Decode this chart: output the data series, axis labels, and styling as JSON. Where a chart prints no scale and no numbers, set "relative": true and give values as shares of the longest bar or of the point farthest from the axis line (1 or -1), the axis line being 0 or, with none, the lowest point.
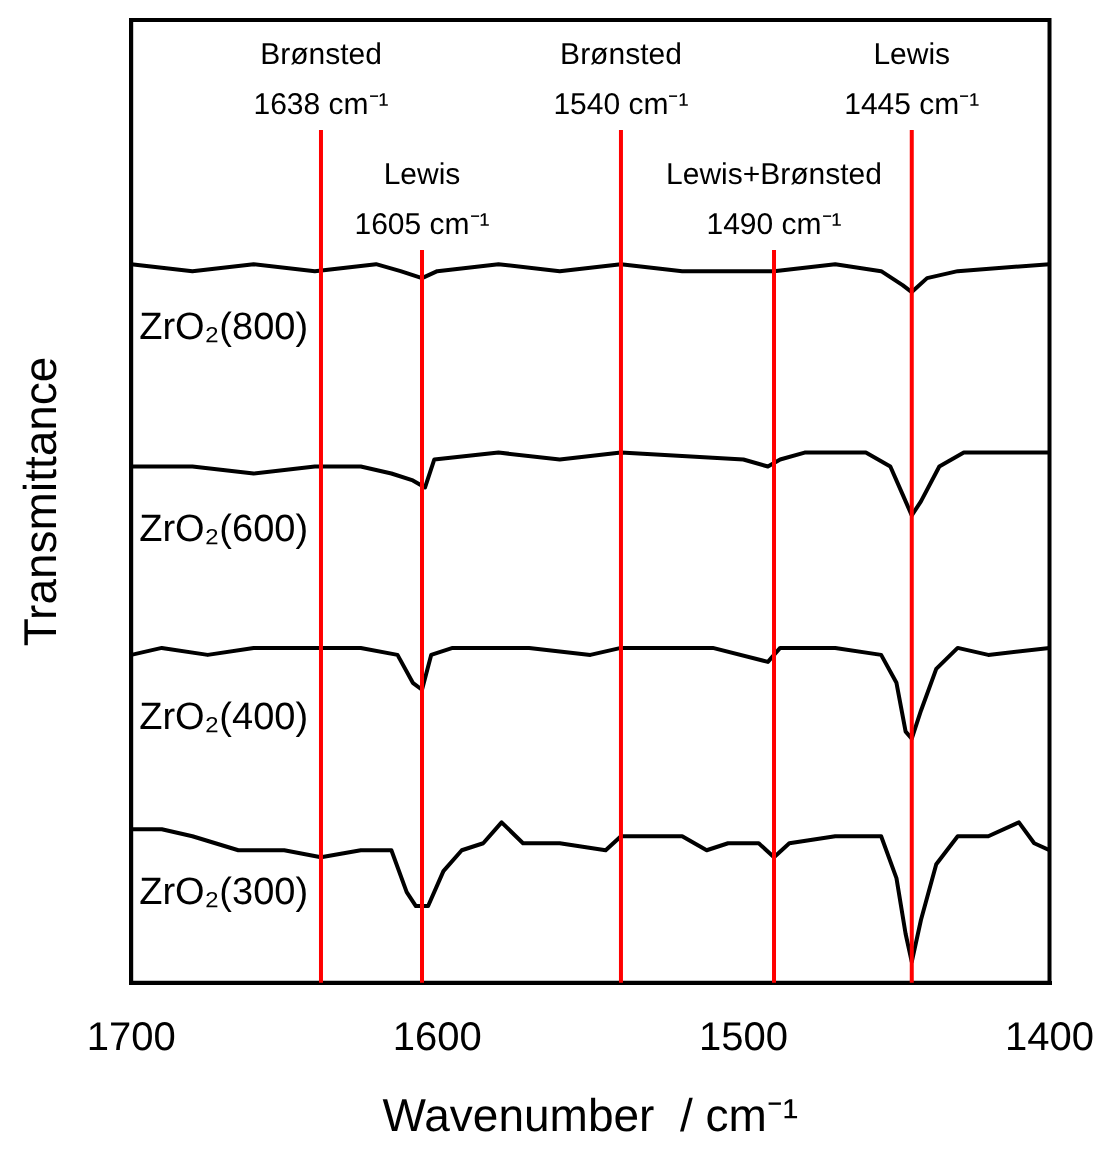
{
  "chart_data": {
    "type": "line",
    "relative": true,
    "xlabel": "Wavenumber  / cm⁻¹",
    "ylabel": "Transmittance",
    "xlim": [
      1700,
      1400
    ],
    "xticks": [
      1700,
      1600,
      1500,
      1400
    ],
    "series": [
      {
        "name": "ZrO₂(800)",
        "color": "#000000",
        "x": [
          1700,
          1680,
          1660,
          1640,
          1620,
          1612,
          1605,
          1600,
          1580,
          1560,
          1540,
          1520,
          1490,
          1470,
          1455,
          1448,
          1445,
          1440,
          1430,
          1400
        ],
        "values": [
          1.0,
          0.99,
          1.0,
          0.99,
          1.0,
          0.99,
          0.98,
          0.99,
          1.0,
          0.99,
          1.0,
          0.99,
          0.99,
          1.0,
          0.99,
          0.97,
          0.96,
          0.98,
          0.99,
          1.0
        ]
      },
      {
        "name": "ZrO₂(600)",
        "color": "#000000",
        "x": [
          1700,
          1680,
          1660,
          1640,
          1625,
          1615,
          1608,
          1604,
          1601,
          1580,
          1560,
          1540,
          1500,
          1492,
          1488,
          1480,
          1460,
          1452,
          1448,
          1445,
          1442,
          1436,
          1428,
          1400
        ],
        "values": [
          0.71,
          0.71,
          0.7,
          0.71,
          0.71,
          0.7,
          0.69,
          0.68,
          0.72,
          0.73,
          0.72,
          0.73,
          0.72,
          0.71,
          0.72,
          0.73,
          0.73,
          0.71,
          0.67,
          0.64,
          0.66,
          0.71,
          0.73,
          0.73
        ]
      },
      {
        "name": "ZrO₂(400)",
        "color": "#000000",
        "x": [
          1700,
          1690,
          1675,
          1660,
          1640,
          1625,
          1613,
          1608,
          1605,
          1602,
          1595,
          1570,
          1550,
          1540,
          1510,
          1492,
          1488,
          1470,
          1455,
          1450,
          1447,
          1445,
          1442,
          1437,
          1430,
          1420,
          1400
        ],
        "values": [
          0.44,
          0.45,
          0.44,
          0.45,
          0.45,
          0.45,
          0.44,
          0.4,
          0.39,
          0.44,
          0.45,
          0.45,
          0.44,
          0.45,
          0.45,
          0.43,
          0.45,
          0.45,
          0.44,
          0.4,
          0.33,
          0.32,
          0.36,
          0.42,
          0.45,
          0.44,
          0.45
        ]
      },
      {
        "name": "ZrO₂(300)",
        "color": "#000000",
        "x": [
          1700,
          1690,
          1680,
          1665,
          1650,
          1638,
          1625,
          1615,
          1610,
          1607,
          1603,
          1598,
          1592,
          1585,
          1579,
          1572,
          1560,
          1545,
          1540,
          1520,
          1512,
          1505,
          1495,
          1490,
          1485,
          1470,
          1455,
          1450,
          1447,
          1445,
          1442,
          1437,
          1430,
          1420,
          1410,
          1405,
          1400
        ],
        "values": [
          0.19,
          0.19,
          0.18,
          0.16,
          0.16,
          0.15,
          0.16,
          0.16,
          0.1,
          0.08,
          0.08,
          0.13,
          0.16,
          0.17,
          0.2,
          0.17,
          0.17,
          0.16,
          0.18,
          0.18,
          0.16,
          0.17,
          0.17,
          0.15,
          0.17,
          0.18,
          0.18,
          0.12,
          0.04,
          0.0,
          0.06,
          0.14,
          0.18,
          0.18,
          0.2,
          0.17,
          0.16
        ]
      }
    ],
    "ref_lines": [
      {
        "axis": "x",
        "value": 1638,
        "label": "Brønsted\n1638 cm⁻¹",
        "color": "#ff0000"
      },
      {
        "axis": "x",
        "value": 1605,
        "label": "Lewis\n1605 cm⁻¹",
        "color": "#ff0000"
      },
      {
        "axis": "x",
        "value": 1540,
        "label": "Brønsted\n1540 cm⁻¹",
        "color": "#ff0000"
      },
      {
        "axis": "x",
        "value": 1490,
        "label": "Lewis+Brønsted\n1490 cm⁻¹",
        "color": "#ff0000"
      },
      {
        "axis": "x",
        "value": 1445,
        "label": "Lewis\n1445 cm⁻¹",
        "color": "#ff0000"
      }
    ]
  }
}
